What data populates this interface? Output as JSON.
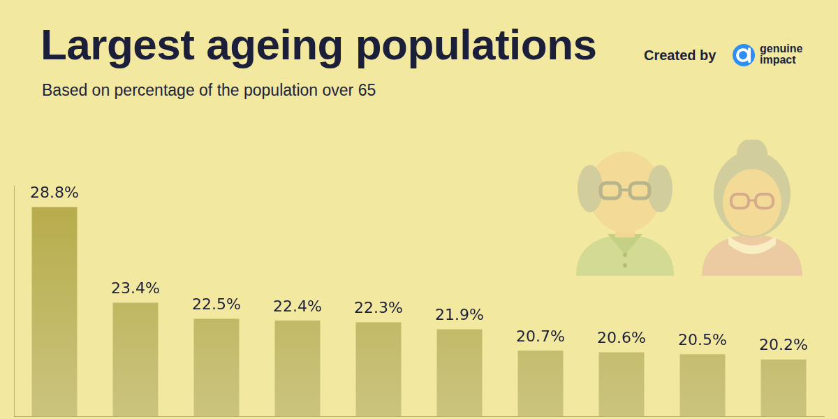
{
  "chart_data": {
    "type": "bar",
    "title": "Largest ageing populations",
    "subtitle": "Based on percentage of the population over 65",
    "credit": "Created by",
    "brand": "genuine impact",
    "categories": [
      null,
      null,
      null,
      null,
      null,
      null,
      null,
      null,
      null,
      null
    ],
    "values": [
      28.8,
      23.4,
      22.5,
      22.4,
      22.3,
      21.9,
      20.7,
      20.6,
      20.5,
      20.2
    ],
    "value_labels": [
      "28.8%",
      "23.4%",
      "22.5%",
      "22.4%",
      "22.3%",
      "21.9%",
      "20.7%",
      "20.6%",
      "20.5%",
      "20.2%"
    ],
    "color": "#b5aa47",
    "ylim": [
      17,
      30
    ],
    "grid": false,
    "tick_labels": false,
    "data_labels": true
  }
}
